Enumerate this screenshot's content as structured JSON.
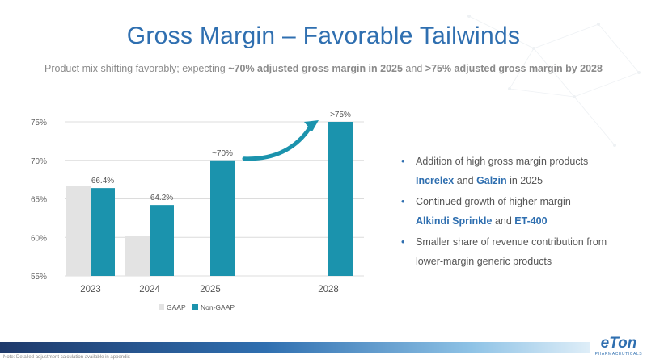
{
  "slide": {
    "title": "Gross Margin – Favorable Tailwinds",
    "subtitle_parts": [
      {
        "text": "Product mix shifting favorably; expecting ",
        "bold": false
      },
      {
        "text": "~70% adjusted gross margin in 2025",
        "bold": true
      },
      {
        "text": " and ",
        "bold": false
      },
      {
        "text": ">75% adjusted gross margin by 2028",
        "bold": true
      }
    ]
  },
  "chart_data": {
    "type": "bar",
    "categories": [
      "2023",
      "2024",
      "2025",
      "2028"
    ],
    "series": [
      {
        "name": "GAAP",
        "values": [
          66.7,
          60.2,
          null,
          null
        ],
        "color": "#e3e3e3"
      },
      {
        "name": "Non-GAAP",
        "values": [
          66.4,
          64.2,
          70,
          75
        ],
        "color": "#1b93ad"
      }
    ],
    "data_labels": [
      "66.4%",
      "64.2%",
      "~70%",
      ">75%"
    ],
    "y_ticks": [
      "75%",
      "70%",
      "65%",
      "60%",
      "55%"
    ],
    "ylim": [
      55,
      75
    ],
    "legend_position": "bottom",
    "arrow_color": "#1b93ad"
  },
  "bullets": [
    {
      "parts": [
        {
          "text": "Addition of high gross margin products",
          "hl": false
        }
      ],
      "line2": [
        {
          "text": "Increlex",
          "hl": true
        },
        {
          "text": " and ",
          "hl": false
        },
        {
          "text": "Galzin",
          "hl": true
        },
        {
          "text": " in 2025",
          "hl": false
        }
      ]
    },
    {
      "parts": [
        {
          "text": "Continued growth of higher margin",
          "hl": false
        }
      ],
      "line2": [
        {
          "text": "Alkindi Sprinkle",
          "hl": true
        },
        {
          "text": " and ",
          "hl": false
        },
        {
          "text": "ET-400",
          "hl": true
        }
      ]
    },
    {
      "parts": [
        {
          "text": "Smaller share of revenue contribution from",
          "hl": false
        }
      ],
      "line2": [
        {
          "text": "lower-margin generic products",
          "hl": false
        }
      ]
    }
  ],
  "footer": {
    "note": "Note: Detailed adjustment calculation available in appendix",
    "logo_word": "eTon",
    "logo_sub": "PHARMACEUTICALS"
  },
  "colors": {
    "title": "#2f6fb0",
    "accent": "#1b93ad",
    "gaap": "#e3e3e3"
  }
}
